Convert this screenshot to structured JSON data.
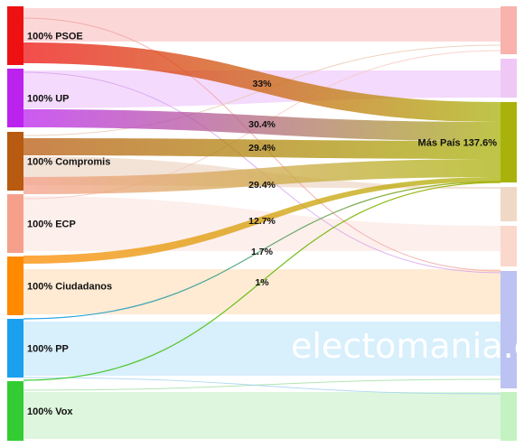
{
  "chart_data": {
    "type": "sankey",
    "sources": [
      {
        "id": "PSOE",
        "label": "100% PSOE",
        "color": "#ee1111"
      },
      {
        "id": "UP",
        "label": "100% UP",
        "color": "#bb22ee"
      },
      {
        "id": "Compromis",
        "label": "100% Compromis",
        "color": "#b85a10"
      },
      {
        "id": "ECP",
        "label": "100% ECP",
        "color": "#f6a08c"
      },
      {
        "id": "Ciudadanos",
        "label": "100% Ciudadanos",
        "color": "#ff8a00"
      },
      {
        "id": "PP",
        "label": "100% PP",
        "color": "#1aa0ee"
      },
      {
        "id": "Vox",
        "label": "100% Vox",
        "color": "#33cc33"
      }
    ],
    "targets": [
      {
        "id": "PSOE",
        "label": "",
        "color": "#f9b2ac"
      },
      {
        "id": "UP",
        "label": "",
        "color": "#efc8f5"
      },
      {
        "id": "MasPais",
        "label": "Más País 137.6%",
        "color": "#a9b20a"
      },
      {
        "id": "Compromis",
        "label": "",
        "color": "#efd8c6"
      },
      {
        "id": "ECP",
        "label": "",
        "color": "#fbd8cc"
      },
      {
        "id": "Ciudadanos",
        "label": "",
        "color": "#fdd9b5"
      },
      {
        "id": "PP",
        "label": "",
        "color": "#bcc2f2"
      },
      {
        "id": "Vox",
        "label": "",
        "color": "#c4f2c2"
      }
    ],
    "flows_to_mas_pais": [
      {
        "source": "PSOE",
        "value": 33,
        "label": "33%"
      },
      {
        "source": "UP",
        "value": 30.4,
        "label": "30.4%"
      },
      {
        "source": "Compromis",
        "value": 29.4,
        "label": "29.4%"
      },
      {
        "source": "ECP",
        "value": 29.4,
        "label": "29.4%"
      },
      {
        "source": "Ciudadanos",
        "value": 12.7,
        "label": "12.7%"
      },
      {
        "source": "PP",
        "value": 1.7,
        "label": "1.7%"
      },
      {
        "source": "Vox",
        "value": 1,
        "label": "1%"
      }
    ]
  },
  "watermark": "electomania.es"
}
